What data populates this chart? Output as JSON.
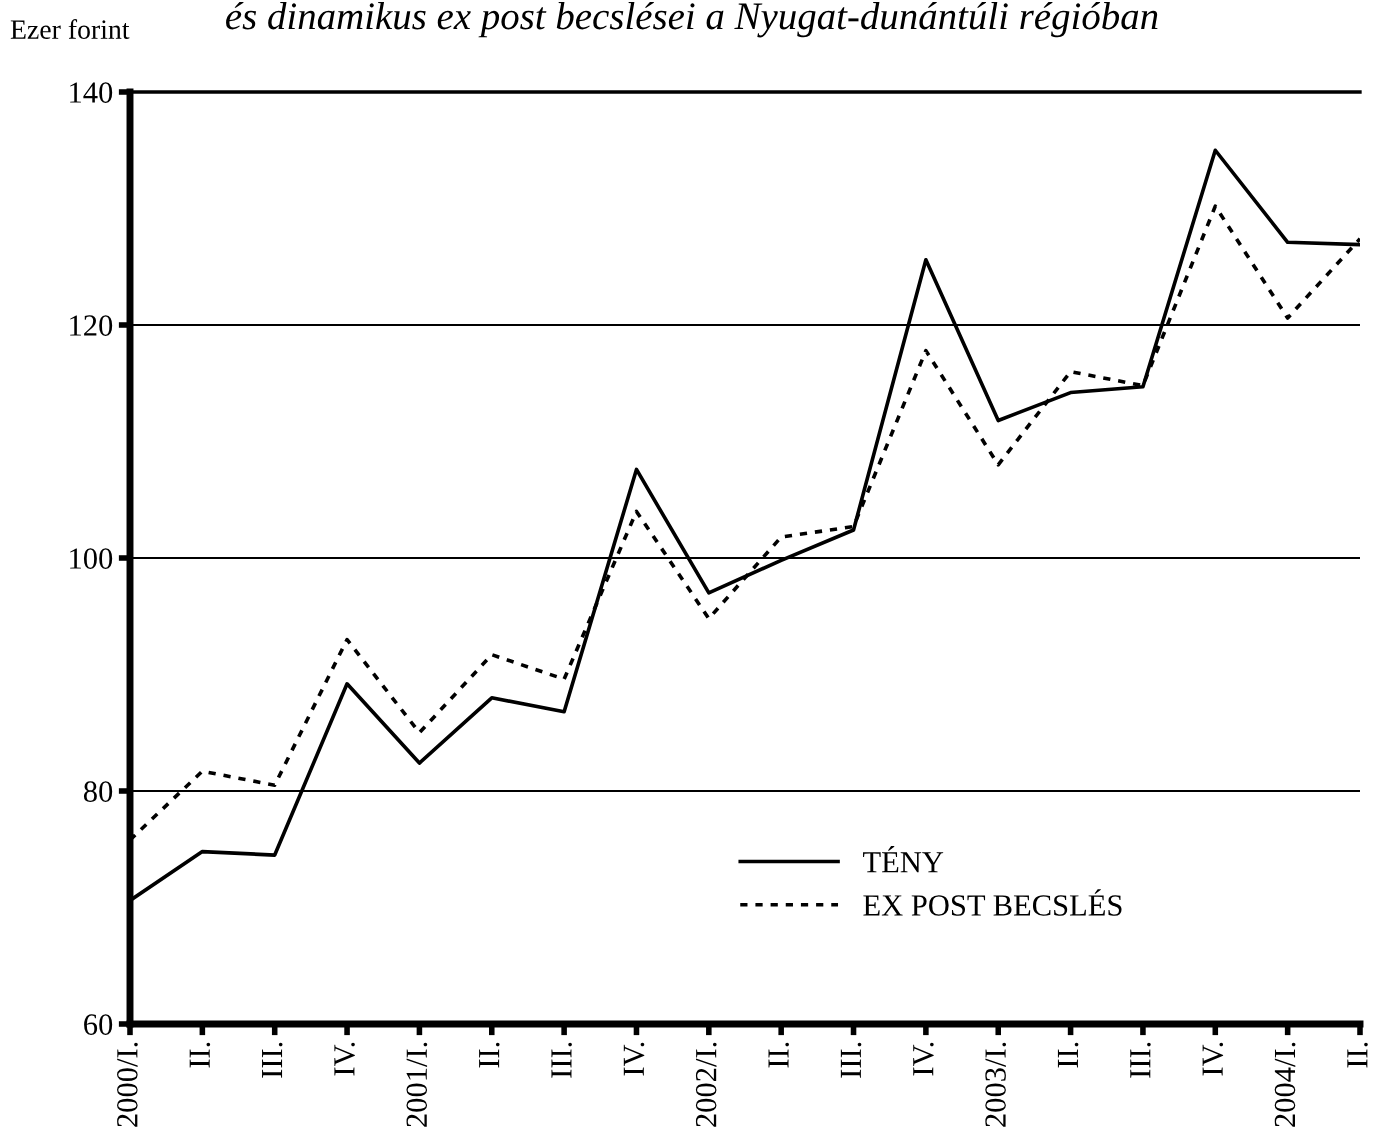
{
  "chart_data": {
    "type": "line",
    "title": "és dinamikus ex post becslései a Nyugat-dunántúli régióban",
    "ylabel": "Ezer forint",
    "categories": [
      "2000/I.",
      "II.",
      "III.",
      "IV.",
      "2001/I.",
      "II.",
      "III.",
      "IV.",
      "2002/I.",
      "II.",
      "III.",
      "IV.",
      "2003/I.",
      "II.",
      "III.",
      "IV.",
      "2004/I.",
      "II."
    ],
    "series": [
      {
        "name": "TÉNY",
        "color": "#000000",
        "line_style": "solid",
        "values": [
          70.6,
          74.8,
          74.5,
          89.2,
          82.4,
          88.0,
          86.8,
          107.6,
          97.0,
          99.8,
          102.4,
          125.6,
          111.8,
          114.2,
          114.7,
          135.0,
          127.1,
          126.9
        ]
      },
      {
        "name": "EX POST BECSLÉS",
        "color": "#000000",
        "line_style": "dotted",
        "values": [
          75.8,
          81.7,
          80.5,
          93.0,
          85.0,
          91.7,
          89.6,
          104.0,
          94.8,
          101.8,
          102.7,
          117.8,
          108.0,
          116.0,
          114.8,
          130.2,
          120.6,
          127.4
        ]
      }
    ],
    "ylim": [
      60,
      140
    ],
    "yticks": [
      60,
      80,
      100,
      120,
      140
    ],
    "grid": "y",
    "legend": "bottom right",
    "marker": "none"
  }
}
